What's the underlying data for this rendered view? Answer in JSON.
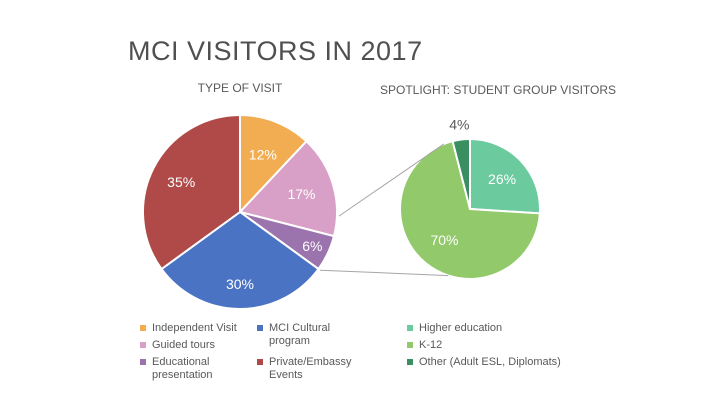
{
  "title": "MCI VISITORS IN 2017",
  "subtitle_left": "TYPE OF VISIT",
  "subtitle_right": "SPOTLIGHT: STUDENT GROUP VISITORS",
  "colors": {
    "orange": "#f2ad52",
    "pink": "#d9a0c7",
    "purple": "#9b73ad",
    "blue": "#4a73c3",
    "red": "#b04a48",
    "teal": "#6bcb9e",
    "lightgreen": "#92c96a",
    "darkgreen": "#3a8f61",
    "connector": "#a6a6a6"
  },
  "chart_data": [
    {
      "type": "pie",
      "title": "TYPE OF VISIT",
      "labels": [
        "Independent Visit",
        "Guided tours",
        "Educational presentation",
        "MCI Cultural program",
        "Private/Embassy Events"
      ],
      "values": [
        12,
        17,
        6,
        30,
        35
      ],
      "data_labels": [
        "12%",
        "17%",
        "6%",
        "30%",
        "35%"
      ],
      "colors": [
        "#f2ad52",
        "#d9a0c7",
        "#9b73ad",
        "#4a73c3",
        "#b04a48"
      ]
    },
    {
      "type": "pie",
      "title": "SPOTLIGHT: STUDENT GROUP VISITORS",
      "labels": [
        "Higher education",
        "K-12",
        "Other (Adult ESL, Diplomats)"
      ],
      "values": [
        26,
        70,
        4
      ],
      "data_labels": [
        "26%",
        "70%",
        "4%"
      ],
      "colors": [
        "#6bcb9e",
        "#92c96a",
        "#3a8f61"
      ]
    }
  ],
  "legend_left": [
    {
      "label": "Independent Visit",
      "color": "#f2ad52"
    },
    {
      "label": "Guided tours",
      "color": "#d9a0c7"
    },
    {
      "label": "Educational presentation",
      "color": "#9b73ad"
    },
    {
      "label": "MCI Cultural program",
      "color": "#4a73c3"
    },
    {
      "label": "Private/Embassy Events",
      "color": "#b04a48"
    }
  ],
  "legend_right": [
    {
      "label": "Higher education",
      "color": "#6bcb9e"
    },
    {
      "label": "K-12",
      "color": "#92c96a"
    },
    {
      "label": "Other (Adult ESL, Diplomats)",
      "color": "#3a8f61"
    }
  ]
}
